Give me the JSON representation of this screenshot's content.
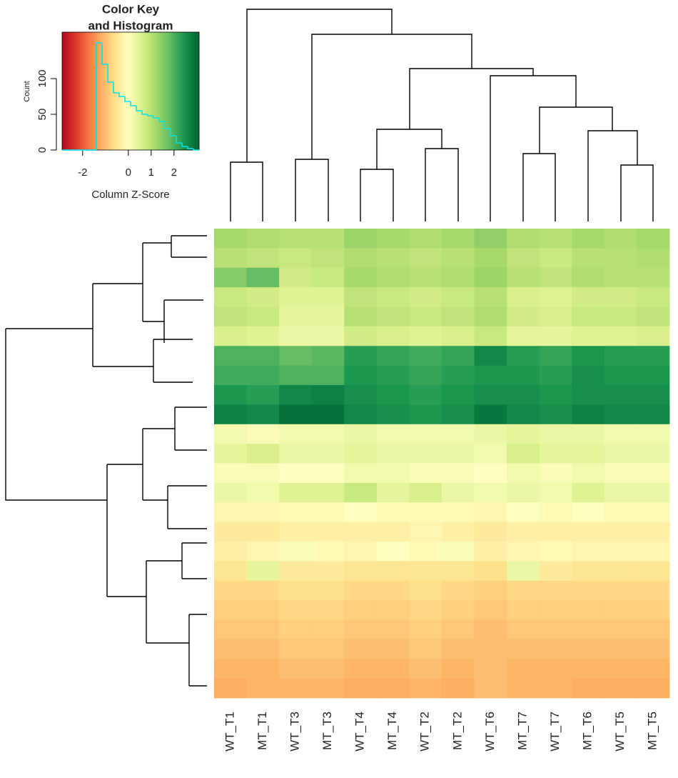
{
  "chart_data": [
    {
      "type": "heatmap",
      "x": [
        "WT_T1",
        "MT_T1",
        "WT_T3",
        "MT_T3",
        "WT_T4",
        "MT_T4",
        "WT_T2",
        "MT_T2",
        "WT_T6",
        "MT_T7",
        "WT_T7",
        "MT_T6",
        "WT_T5",
        "MT_T5"
      ],
      "zlim": [
        -3,
        3
      ],
      "colors": [
        "#a50026",
        "#d73027",
        "#f46d43",
        "#fdae61",
        "#fee08b",
        "#ffffbf",
        "#d9ef8b",
        "#a6d96a",
        "#66bd63",
        "#1a9850",
        "#006837"
      ],
      "z": [
        [
          1.2,
          1.1,
          1.0,
          1.0,
          1.3,
          1.2,
          1.1,
          1.2,
          1.4,
          1.1,
          1.0,
          1.2,
          1.1,
          1.2
        ],
        [
          1.0,
          0.9,
          0.8,
          0.9,
          1.1,
          1.0,
          0.9,
          1.0,
          1.2,
          0.9,
          0.8,
          1.0,
          1.0,
          1.1
        ],
        [
          1.5,
          1.8,
          0.7,
          0.8,
          1.2,
          1.1,
          1.0,
          1.1,
          1.3,
          1.0,
          0.9,
          1.1,
          1.0,
          1.0
        ],
        [
          0.8,
          0.7,
          0.5,
          0.5,
          0.9,
          0.8,
          0.7,
          0.8,
          1.0,
          0.6,
          0.5,
          0.7,
          0.7,
          0.8
        ],
        [
          0.9,
          0.8,
          0.4,
          0.4,
          1.0,
          0.9,
          0.8,
          0.9,
          1.1,
          0.7,
          0.6,
          0.8,
          0.8,
          0.9
        ],
        [
          0.6,
          0.5,
          0.3,
          0.3,
          0.7,
          0.6,
          0.5,
          0.6,
          0.8,
          0.4,
          0.4,
          0.5,
          0.5,
          0.6
        ],
        [
          2.0,
          2.0,
          1.8,
          1.9,
          2.3,
          2.2,
          2.1,
          2.2,
          2.6,
          2.3,
          2.2,
          2.4,
          2.3,
          2.3
        ],
        [
          2.1,
          2.1,
          2.0,
          2.0,
          2.4,
          2.3,
          2.2,
          2.3,
          2.4,
          2.4,
          2.3,
          2.5,
          2.4,
          2.4
        ],
        [
          2.4,
          2.3,
          2.6,
          2.7,
          2.5,
          2.4,
          2.3,
          2.4,
          2.5,
          2.5,
          2.4,
          2.5,
          2.5,
          2.5
        ],
        [
          2.7,
          2.6,
          2.9,
          2.9,
          2.6,
          2.5,
          2.4,
          2.5,
          2.8,
          2.6,
          2.5,
          2.7,
          2.6,
          2.6
        ],
        [
          0.2,
          0.1,
          0.2,
          0.2,
          0.3,
          0.2,
          0.2,
          0.2,
          0.3,
          0.4,
          0.3,
          0.3,
          0.2,
          0.2
        ],
        [
          0.4,
          0.6,
          0.3,
          0.3,
          0.4,
          0.3,
          0.3,
          0.3,
          0.2,
          0.6,
          0.4,
          0.4,
          0.3,
          0.3
        ],
        [
          0.1,
          0.1,
          0.0,
          0.0,
          0.2,
          0.2,
          0.1,
          0.1,
          0.0,
          0.2,
          0.1,
          0.2,
          0.1,
          0.1
        ],
        [
          0.3,
          0.2,
          0.5,
          0.5,
          0.8,
          0.4,
          0.6,
          0.3,
          0.2,
          0.3,
          0.2,
          0.5,
          0.3,
          0.3
        ],
        [
          -0.2,
          -0.2,
          -0.1,
          -0.1,
          0.0,
          -0.1,
          -0.1,
          -0.1,
          -0.2,
          0.0,
          -0.1,
          0.0,
          -0.1,
          -0.1
        ],
        [
          -0.4,
          -0.4,
          -0.3,
          -0.3,
          -0.3,
          -0.3,
          -0.2,
          -0.3,
          -0.4,
          -0.3,
          -0.3,
          -0.3,
          -0.3,
          -0.3
        ],
        [
          -0.3,
          -0.2,
          0.1,
          -0.1,
          -0.2,
          0.0,
          -0.1,
          0.1,
          -0.3,
          -0.2,
          -0.1,
          -0.2,
          -0.2,
          -0.2
        ],
        [
          -0.5,
          0.4,
          -0.4,
          -0.4,
          -0.5,
          -0.5,
          -0.5,
          -0.5,
          -0.6,
          0.3,
          -0.4,
          -0.5,
          -0.5,
          -0.5
        ],
        [
          -0.7,
          -0.7,
          -0.6,
          -0.6,
          -0.7,
          -0.7,
          -0.6,
          -0.7,
          -0.8,
          -0.7,
          -0.7,
          -0.7,
          -0.7,
          -0.7
        ],
        [
          -0.8,
          -0.8,
          -0.7,
          -0.7,
          -0.8,
          -0.8,
          -0.7,
          -0.8,
          -0.9,
          -0.8,
          -0.8,
          -0.8,
          -0.8,
          -0.8
        ],
        [
          -0.9,
          -0.9,
          -0.8,
          -0.8,
          -0.9,
          -0.9,
          -0.8,
          -0.9,
          -1.0,
          -0.9,
          -0.9,
          -0.9,
          -0.9,
          -0.9
        ],
        [
          -1.0,
          -1.0,
          -0.9,
          -0.9,
          -1.0,
          -1.0,
          -0.9,
          -1.0,
          -1.0,
          -1.0,
          -1.0,
          -1.0,
          -1.0,
          -1.0
        ],
        [
          -1.1,
          -1.1,
          -1.0,
          -1.0,
          -1.1,
          -1.1,
          -1.0,
          -1.1,
          -1.0,
          -1.1,
          -1.1,
          -1.1,
          -1.1,
          -1.1
        ],
        [
          -1.2,
          -1.1,
          -1.1,
          -1.1,
          -1.2,
          -1.2,
          -1.1,
          -1.2,
          -1.0,
          -1.1,
          -1.1,
          -1.2,
          -1.2,
          -1.2
        ]
      ]
    },
    {
      "type": "histogram",
      "title_lines": [
        "Color Key",
        "and Histogram"
      ],
      "xlabel": "Column Z-Score",
      "ylabel": "Count",
      "color": "#00e5ee",
      "bins": [
        -2.9,
        -2.65,
        -2.4,
        -2.15,
        -1.9,
        -1.65,
        -1.4,
        -1.15,
        -0.9,
        -0.65,
        -0.4,
        -0.15,
        0.1,
        0.35,
        0.6,
        0.85,
        1.1,
        1.35,
        1.6,
        1.85,
        2.1,
        2.35,
        2.6,
        2.85,
        3.1
      ],
      "counts": [
        0,
        0,
        0,
        0,
        0,
        0,
        150,
        120,
        95,
        80,
        75,
        68,
        62,
        55,
        50,
        48,
        45,
        40,
        30,
        20,
        10,
        5,
        2,
        0
      ],
      "xlim": [
        -2.9,
        3.1
      ],
      "xticks": [
        -2,
        0,
        1,
        2
      ],
      "ylim": [
        0,
        165
      ],
      "yticks": [
        0,
        50,
        100
      ]
    }
  ]
}
